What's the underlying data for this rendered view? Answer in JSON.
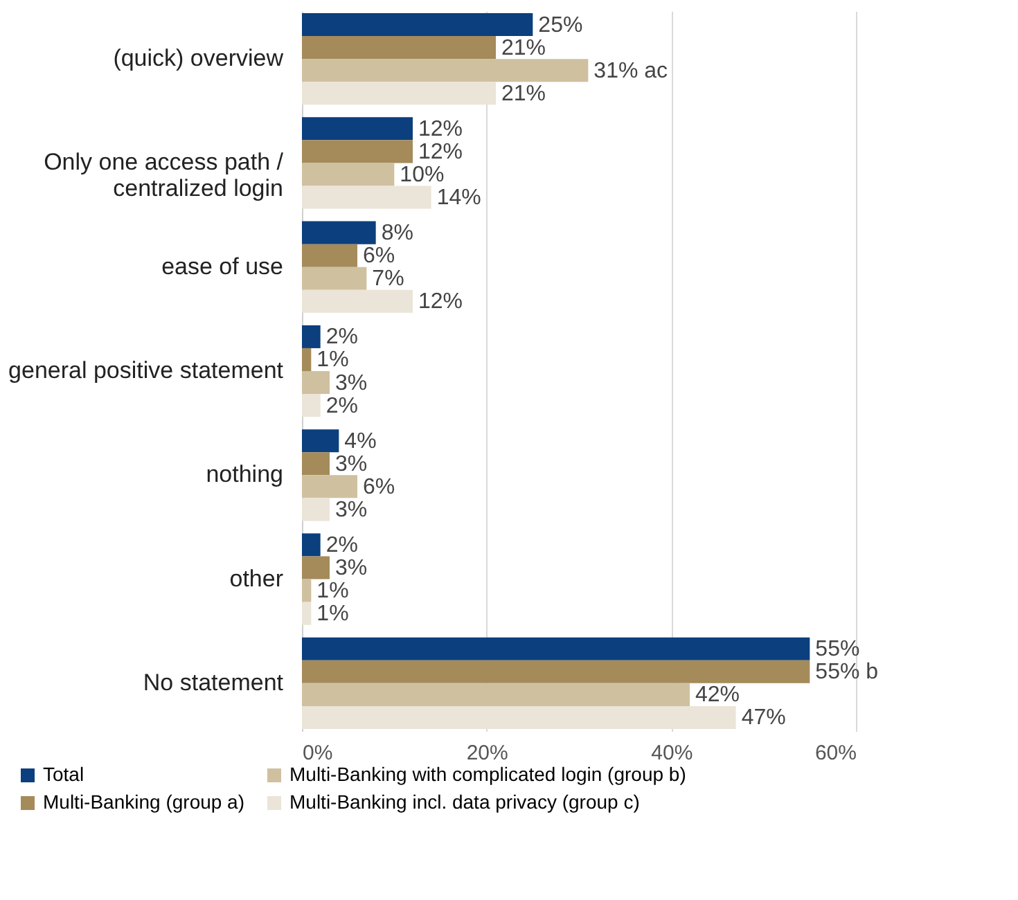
{
  "chart_data": {
    "type": "bar",
    "orientation": "horizontal",
    "categories": [
      "(quick) overview",
      "Only one access path / centralized login",
      "ease of use",
      "general positive statement",
      "nothing",
      "other",
      "No statement"
    ],
    "series": [
      {
        "name": "Total",
        "color": "#0b3f7e",
        "values": [
          25,
          12,
          8,
          2,
          4,
          2,
          55
        ],
        "value_labels": [
          "25%",
          "12%",
          "8%",
          "2%",
          "4%",
          "2%",
          "55%"
        ]
      },
      {
        "name": "Multi-Banking (group a)",
        "color": "#a58a5a",
        "values": [
          21,
          12,
          6,
          1,
          3,
          3,
          55
        ],
        "value_labels": [
          "21%",
          "12%",
          "6%",
          "1%",
          "3%",
          "3%",
          "55% b"
        ]
      },
      {
        "name": "Multi-Banking with complicated login (group b)",
        "color": "#cfc09f",
        "values": [
          31,
          10,
          7,
          3,
          6,
          1,
          42
        ],
        "value_labels": [
          "31% ac",
          "10%",
          "7%",
          "3%",
          "6%",
          "1%",
          "42%"
        ]
      },
      {
        "name": "Multi-Banking incl. data privacy (group c)",
        "color": "#ebe4d8",
        "values": [
          21,
          14,
          12,
          2,
          3,
          1,
          47
        ],
        "value_labels": [
          "21%",
          "14%",
          "12%",
          "2%",
          "3%",
          "1%",
          "47%"
        ]
      }
    ],
    "xlim": [
      0,
      60
    ],
    "xticks": [
      {
        "value": 0,
        "label": "0%"
      },
      {
        "value": 20,
        "label": "20%"
      },
      {
        "value": 40,
        "label": "40%"
      },
      {
        "value": 60,
        "label": "60%"
      }
    ],
    "grid": "x",
    "legend": "bottom"
  }
}
